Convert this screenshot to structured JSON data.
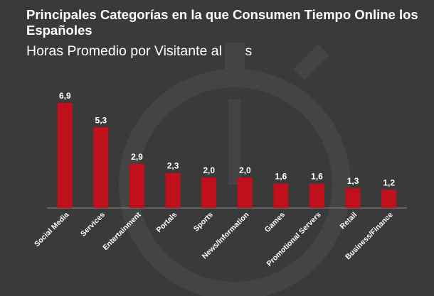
{
  "chart_data": {
    "type": "bar",
    "title": "Principales Categorías en la que Consumen Tiempo Online los Españoles",
    "subtitle": "Horas Promedio por Visitante al Mes",
    "categories": [
      "Social Media",
      "Services",
      "Entertainment",
      "Portals",
      "Sports",
      "News/Information",
      "Games",
      "Promotional Servers",
      "Retail",
      "Business/Finance"
    ],
    "values": [
      6.9,
      5.3,
      2.9,
      2.3,
      2.0,
      2.0,
      1.6,
      1.6,
      1.3,
      1.2
    ],
    "value_labels": [
      "6,9",
      "5,3",
      "2,9",
      "2,3",
      "2,0",
      "2,0",
      "1,6",
      "1,6",
      "1,3",
      "1,2"
    ],
    "ylim": [
      0,
      7
    ],
    "grid": false,
    "legend": "none",
    "colors": {
      "bar": "#c0101c",
      "background": "#3a3a3a",
      "text": "#ffffff",
      "axis": "#8a8a8a",
      "watermark": "#444444"
    }
  },
  "background": {
    "watermark_icon": "stopwatch-icon"
  }
}
